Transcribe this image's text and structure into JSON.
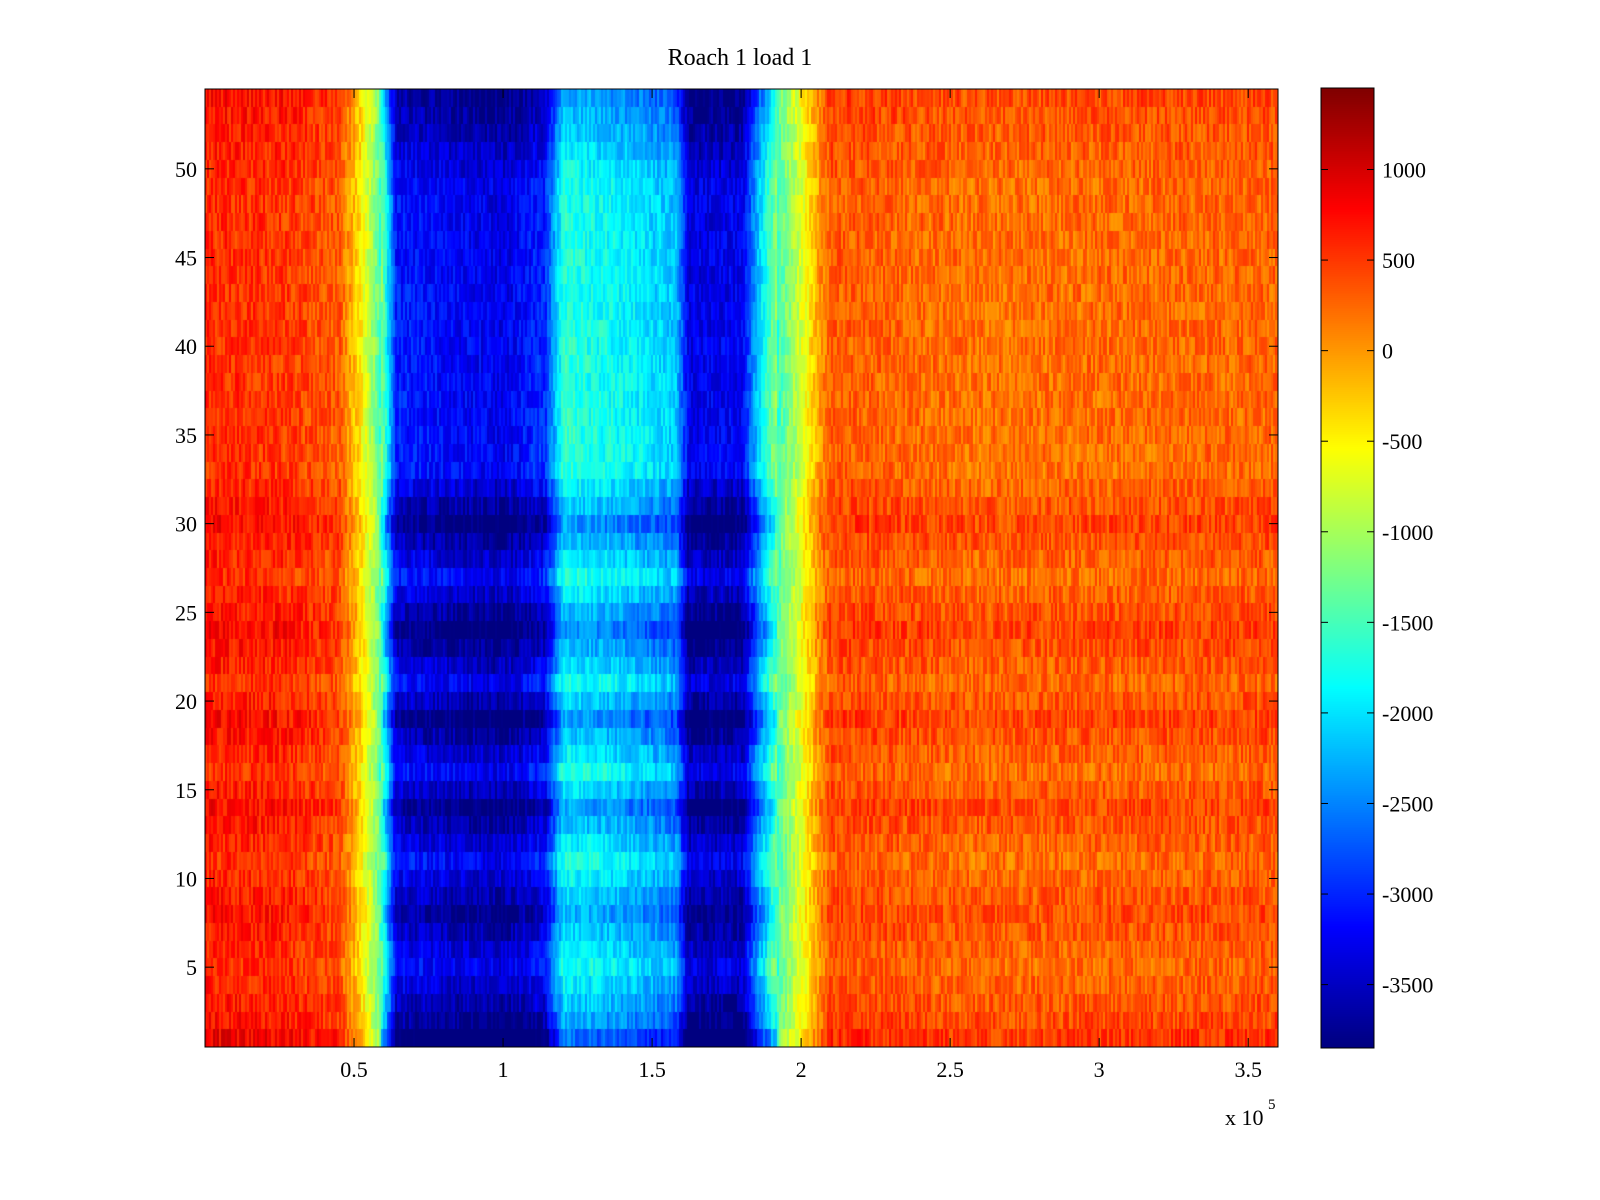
{
  "chart_data": {
    "type": "heatmap",
    "title": "Roach 1 load 1",
    "xlabel": "",
    "ylabel": "",
    "x_exponent_label": "x 10",
    "x_exponent": "5",
    "xlim": [
      0,
      360000
    ],
    "ylim": [
      0.5,
      54.5
    ],
    "x_ticks": [
      {
        "value": 50000,
        "label": "0.5"
      },
      {
        "value": 100000,
        "label": "1"
      },
      {
        "value": 150000,
        "label": "1.5"
      },
      {
        "value": 200000,
        "label": "2"
      },
      {
        "value": 250000,
        "label": "2.5"
      },
      {
        "value": 300000,
        "label": "3"
      },
      {
        "value": 350000,
        "label": "3.5"
      }
    ],
    "y_ticks": [
      {
        "value": 5,
        "label": "5"
      },
      {
        "value": 10,
        "label": "10"
      },
      {
        "value": 15,
        "label": "15"
      },
      {
        "value": 20,
        "label": "20"
      },
      {
        "value": 25,
        "label": "25"
      },
      {
        "value": 30,
        "label": "30"
      },
      {
        "value": 35,
        "label": "35"
      },
      {
        "value": 40,
        "label": "40"
      },
      {
        "value": 45,
        "label": "45"
      },
      {
        "value": 50,
        "label": "50"
      }
    ],
    "colormap": "jet",
    "colorbar": {
      "range": [
        -3850,
        1450
      ],
      "ticks": [
        {
          "value": 1000,
          "label": "1000"
        },
        {
          "value": 500,
          "label": "500"
        },
        {
          "value": 0,
          "label": "0"
        },
        {
          "value": -500,
          "label": "-500"
        },
        {
          "value": -1000,
          "label": "-1000"
        },
        {
          "value": -1500,
          "label": "-1500"
        },
        {
          "value": -2000,
          "label": "-2000"
        },
        {
          "value": -2500,
          "label": "-2500"
        },
        {
          "value": -3000,
          "label": "-3000"
        },
        {
          "value": -3500,
          "label": "-3500"
        }
      ]
    },
    "rows": 54,
    "x_profile": [
      {
        "x": 0,
        "value": 700
      },
      {
        "x": 25000,
        "value": 650
      },
      {
        "x": 45000,
        "value": 450
      },
      {
        "x": 52000,
        "value": -300
      },
      {
        "x": 58000,
        "value": -1200
      },
      {
        "x": 64000,
        "value": -3500
      },
      {
        "x": 100000,
        "value": -3750
      },
      {
        "x": 114000,
        "value": -3400
      },
      {
        "x": 120000,
        "value": -2100
      },
      {
        "x": 140000,
        "value": -2300
      },
      {
        "x": 158000,
        "value": -2600
      },
      {
        "x": 162000,
        "value": -3750
      },
      {
        "x": 180000,
        "value": -3700
      },
      {
        "x": 186000,
        "value": -2500
      },
      {
        "x": 193000,
        "value": -1300
      },
      {
        "x": 200000,
        "value": -600
      },
      {
        "x": 206000,
        "value": 100
      },
      {
        "x": 210000,
        "value": 450
      },
      {
        "x": 260000,
        "value": 330
      },
      {
        "x": 360000,
        "value": 400
      }
    ],
    "row_variation": [
      {
        "y": 1,
        "value": 1.0
      },
      {
        "y": 2,
        "value": 0.3
      },
      {
        "y": 5,
        "value": -0.8
      },
      {
        "y": 8,
        "value": 0.2
      },
      {
        "y": 11,
        "value": -0.9
      },
      {
        "y": 14,
        "value": 0.4
      },
      {
        "y": 16,
        "value": -0.9
      },
      {
        "y": 19,
        "value": 0.5
      },
      {
        "y": 21,
        "value": -0.8
      },
      {
        "y": 24,
        "value": 0.6
      },
      {
        "y": 27,
        "value": -0.9
      },
      {
        "y": 30,
        "value": 0.5
      },
      {
        "y": 33,
        "value": -1.0
      },
      {
        "y": 40,
        "value": -0.9
      },
      {
        "y": 49,
        "value": -0.8
      },
      {
        "y": 54,
        "value": 0.3
      }
    ]
  }
}
